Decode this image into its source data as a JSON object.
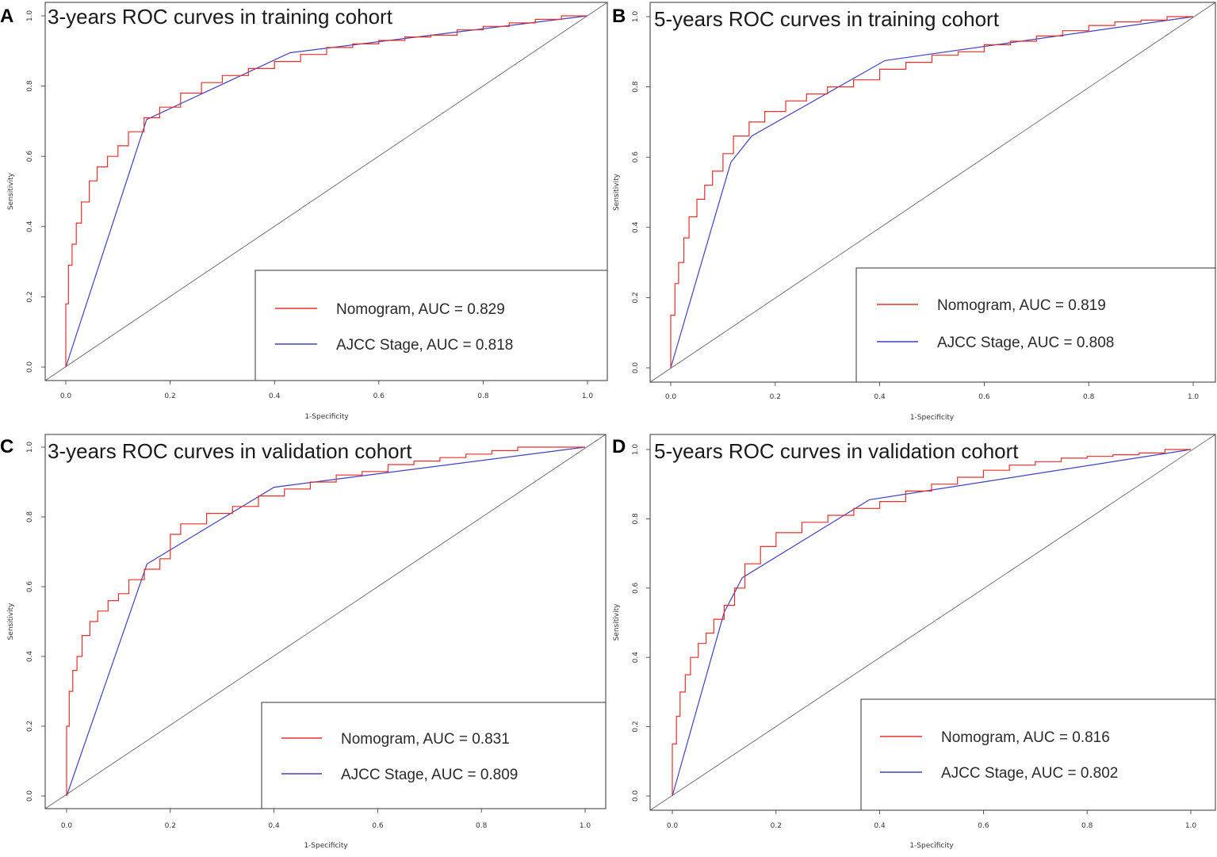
{
  "colors": {
    "nomogram": "#e8302b",
    "ajcc": "#4040c0",
    "diagonal": "#555555",
    "frame": "#333333"
  },
  "chart_data": [
    {
      "type": "line",
      "panel_label": "A",
      "title": "3-years ROC curves in training cohort",
      "xlabel": "1-Specificity",
      "ylabel": "Sensitivity",
      "xlim": [
        0,
        1
      ],
      "ylim": [
        0,
        1
      ],
      "xticks": [
        "0.0",
        "0.2",
        "0.4",
        "0.6",
        "0.8",
        "1.0"
      ],
      "yticks": [
        "0.0",
        "0.2",
        "0.4",
        "0.6",
        "0.8",
        "1.0"
      ],
      "legend_position": "bottom-right",
      "series": [
        {
          "name": "Nomogram",
          "legend": "Nomogram, AUC = 0.829",
          "auc": 0.829,
          "x": [
            0,
            0.005,
            0.012,
            0.02,
            0.03,
            0.045,
            0.06,
            0.08,
            0.1,
            0.12,
            0.15,
            0.18,
            0.22,
            0.26,
            0.3,
            0.35,
            0.4,
            0.45,
            0.5,
            0.55,
            0.6,
            0.65,
            0.7,
            0.75,
            0.8,
            0.85,
            0.9,
            0.95,
            1.0
          ],
          "y": [
            0,
            0.18,
            0.29,
            0.35,
            0.41,
            0.47,
            0.53,
            0.57,
            0.6,
            0.63,
            0.67,
            0.71,
            0.74,
            0.78,
            0.81,
            0.83,
            0.85,
            0.87,
            0.89,
            0.91,
            0.92,
            0.93,
            0.94,
            0.945,
            0.96,
            0.97,
            0.98,
            0.99,
            1.0
          ]
        },
        {
          "name": "AJCC Stage",
          "legend": "AJCC Stage, AUC = 0.818",
          "auc": 0.818,
          "x": [
            0,
            0.155,
            0.43,
            1.0
          ],
          "y": [
            0,
            0.705,
            0.895,
            1.0
          ]
        }
      ]
    },
    {
      "type": "line",
      "panel_label": "B",
      "title": "5-years ROC curves in training cohort",
      "xlabel": "1-Specificity",
      "ylabel": "Sensitivity",
      "xlim": [
        0,
        1
      ],
      "ylim": [
        0,
        1
      ],
      "xticks": [
        "0.0",
        "0.2",
        "0.4",
        "0.6",
        "0.8",
        "1.0"
      ],
      "yticks": [
        "0.0",
        "0.2",
        "0.4",
        "0.6",
        "0.8",
        "1.0"
      ],
      "legend_position": "bottom-right",
      "series": [
        {
          "name": "Nomogram",
          "legend": "Nomogram, AUC = 0.819",
          "auc": 0.819,
          "x": [
            0,
            0.008,
            0.015,
            0.025,
            0.035,
            0.05,
            0.065,
            0.08,
            0.1,
            0.12,
            0.15,
            0.18,
            0.22,
            0.26,
            0.3,
            0.35,
            0.4,
            0.45,
            0.5,
            0.55,
            0.6,
            0.65,
            0.7,
            0.75,
            0.8,
            0.85,
            0.9,
            0.95,
            1.0
          ],
          "y": [
            0,
            0.15,
            0.24,
            0.3,
            0.37,
            0.43,
            0.48,
            0.52,
            0.56,
            0.61,
            0.66,
            0.7,
            0.73,
            0.76,
            0.78,
            0.8,
            0.82,
            0.85,
            0.87,
            0.89,
            0.9,
            0.92,
            0.93,
            0.945,
            0.96,
            0.975,
            0.985,
            0.99,
            1.0
          ]
        },
        {
          "name": "AJCC Stage",
          "legend": "AJCC Stage, AUC = 0.808",
          "auc": 0.808,
          "x": [
            0,
            0.115,
            0.155,
            0.41,
            1.0
          ],
          "y": [
            0,
            0.585,
            0.66,
            0.875,
            1.0
          ]
        }
      ]
    },
    {
      "type": "line",
      "panel_label": "C",
      "title": "3-years ROC curves in validation cohort",
      "xlabel": "1-Specificity",
      "ylabel": "Sensitivity",
      "xlim": [
        0,
        1
      ],
      "ylim": [
        0,
        1
      ],
      "xticks": [
        "0.0",
        "0.2",
        "0.4",
        "0.6",
        "0.8",
        "1.0"
      ],
      "yticks": [
        "0.0",
        "0.2",
        "0.4",
        "0.6",
        "0.8",
        "1.0"
      ],
      "legend_position": "bottom-right",
      "series": [
        {
          "name": "Nomogram",
          "legend": "Nomogram, AUC = 0.831",
          "auc": 0.831,
          "x": [
            0,
            0.005,
            0.012,
            0.02,
            0.03,
            0.045,
            0.06,
            0.08,
            0.1,
            0.12,
            0.15,
            0.18,
            0.2,
            0.22,
            0.27,
            0.32,
            0.37,
            0.42,
            0.47,
            0.52,
            0.57,
            0.62,
            0.67,
            0.72,
            0.77,
            0.82,
            0.87,
            0.93,
            1.0
          ],
          "y": [
            0,
            0.2,
            0.3,
            0.36,
            0.4,
            0.46,
            0.5,
            0.53,
            0.56,
            0.58,
            0.62,
            0.65,
            0.68,
            0.75,
            0.78,
            0.81,
            0.83,
            0.86,
            0.88,
            0.9,
            0.92,
            0.93,
            0.95,
            0.96,
            0.97,
            0.98,
            0.99,
            1.0,
            1.0
          ]
        },
        {
          "name": "AJCC Stage",
          "legend": "AJCC Stage, AUC = 0.809",
          "auc": 0.809,
          "x": [
            0,
            0.155,
            0.4,
            1.0
          ],
          "y": [
            0,
            0.665,
            0.885,
            1.0
          ]
        }
      ]
    },
    {
      "type": "line",
      "panel_label": "D",
      "title": "5-years ROC curves in validation cohort",
      "xlabel": "1-Specificity",
      "ylabel": "Sensitivity",
      "xlim": [
        0,
        1
      ],
      "ylim": [
        0,
        1
      ],
      "xticks": [
        "0.0",
        "0.2",
        "0.4",
        "0.6",
        "0.8",
        "1.0"
      ],
      "yticks": [
        "0.0",
        "0.2",
        "0.4",
        "0.6",
        "0.8",
        "1.0"
      ],
      "legend_position": "bottom-right",
      "series": [
        {
          "name": "Nomogram",
          "legend": "Nomogram, AUC = 0.816",
          "auc": 0.816,
          "x": [
            0,
            0.008,
            0.015,
            0.025,
            0.035,
            0.05,
            0.065,
            0.08,
            0.1,
            0.12,
            0.14,
            0.17,
            0.2,
            0.25,
            0.3,
            0.35,
            0.4,
            0.45,
            0.5,
            0.55,
            0.6,
            0.65,
            0.7,
            0.75,
            0.8,
            0.85,
            0.9,
            0.95,
            1.0
          ],
          "y": [
            0,
            0.15,
            0.23,
            0.3,
            0.35,
            0.4,
            0.44,
            0.47,
            0.51,
            0.55,
            0.6,
            0.67,
            0.72,
            0.76,
            0.79,
            0.81,
            0.83,
            0.85,
            0.88,
            0.9,
            0.92,
            0.94,
            0.955,
            0.965,
            0.975,
            0.98,
            0.985,
            0.99,
            1.0
          ]
        },
        {
          "name": "AJCC Stage",
          "legend": "AJCC Stage, AUC = 0.802",
          "auc": 0.802,
          "x": [
            0,
            0.1,
            0.135,
            0.38,
            1.0
          ],
          "y": [
            0,
            0.53,
            0.63,
            0.855,
            1.0
          ]
        }
      ]
    }
  ]
}
